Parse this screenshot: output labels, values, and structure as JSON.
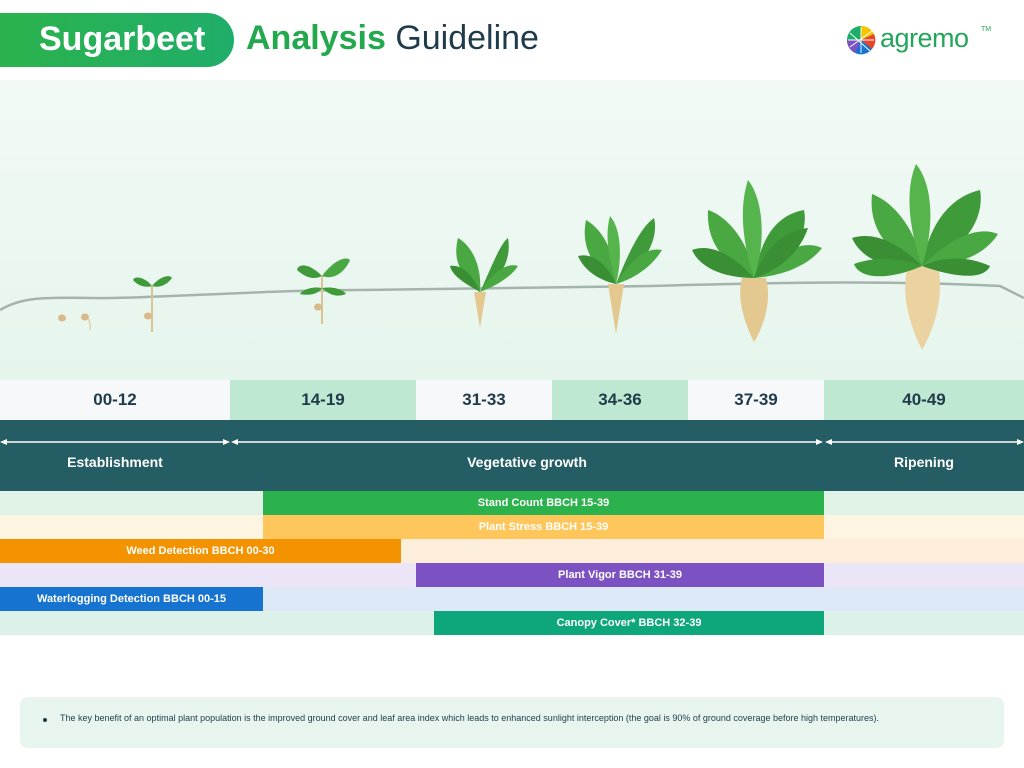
{
  "header": {
    "pill_label": "Sugarbeet",
    "accent_word": "Analysis",
    "title_rest": "Guideline"
  },
  "logo": {
    "text": "agremo",
    "tm": "TM"
  },
  "stages": [
    "00-12",
    "14-19",
    "31-33",
    "34-36",
    "37-39",
    "40-49"
  ],
  "phases": [
    "Establishment",
    "Vegetative growth",
    "Ripening"
  ],
  "analyses": [
    {
      "label": "Stand Count BBCH 15-39",
      "color": "#2bb24c",
      "bg": "#e1f3e6"
    },
    {
      "label": "Plant Stress BBCH 15-39",
      "color": "#fec65b",
      "bg": "#fef4e2"
    },
    {
      "label": "Weed Detection BBCH 00-30",
      "color": "#f39300",
      "bg": "#fdeedb"
    },
    {
      "label": "Plant Vigor BBCH 31-39",
      "color": "#7c52c3",
      "bg": "#ece4f7"
    },
    {
      "label": "Waterlogging Detection BBCH 00-15",
      "color": "#1673d0",
      "bg": "#dde9f7"
    },
    {
      "label": "Canopy Cover* BBCH 32-39",
      "color": "#0ea77b",
      "bg": "#dbf1ea"
    }
  ],
  "note": "The key benefit of an optimal plant population is the improved ground cover and leaf area index which leads to enhanced sunlight interception (the goal is 90% of ground coverage before high temperatures).",
  "colors": {
    "brand_green": "#2bb24c",
    "title_dark": "#1f3b4a",
    "phase_band": "#245d63",
    "stage_light": "#f7f8fa",
    "stage_green": "#bfe8d3"
  }
}
